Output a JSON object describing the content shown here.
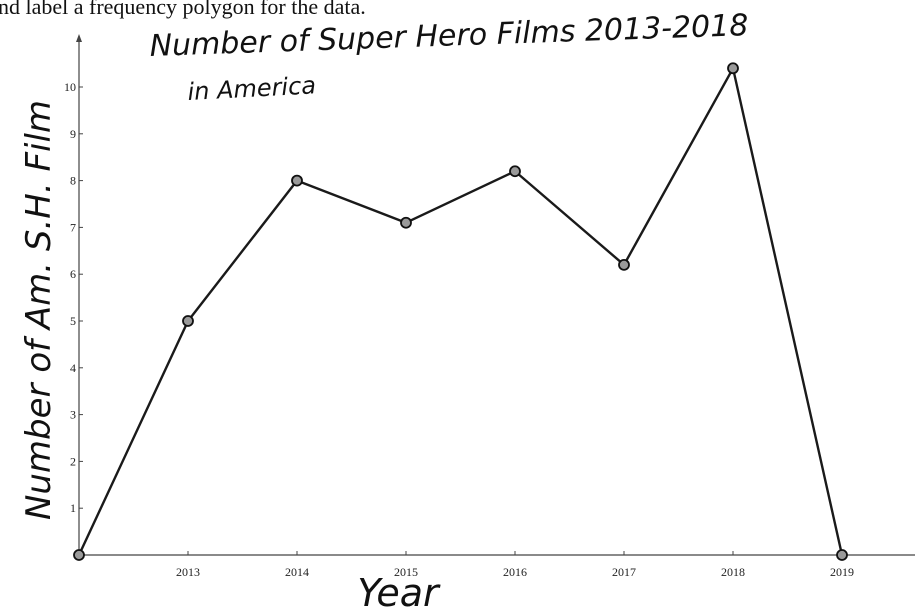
{
  "prompt": "nd label a frequency polygon for the data.",
  "chart_data": {
    "type": "line",
    "title": "Number of Super Hero Films 2013-2018",
    "subtitle": "in America",
    "xlabel": "Year",
    "ylabel": "Number of Am. S.H. Film",
    "x_tick_labels": [
      "2013",
      "2014",
      "2015",
      "2016",
      "2017",
      "2018",
      "2019"
    ],
    "y_tick_labels": [
      "1",
      "2",
      "3",
      "4",
      "5",
      "6",
      "7",
      "8",
      "9",
      "10"
    ],
    "xlim": [
      2012,
      2019.6
    ],
    "ylim": [
      0,
      10.7
    ],
    "grid": false,
    "series": [
      {
        "x": [
          2012,
          2013,
          2014,
          2015,
          2016,
          2017,
          2018,
          2019
        ],
        "y": [
          0,
          5,
          8,
          7.1,
          8.2,
          6.2,
          10.4,
          0
        ],
        "color": "#1a1a1a"
      }
    ]
  }
}
